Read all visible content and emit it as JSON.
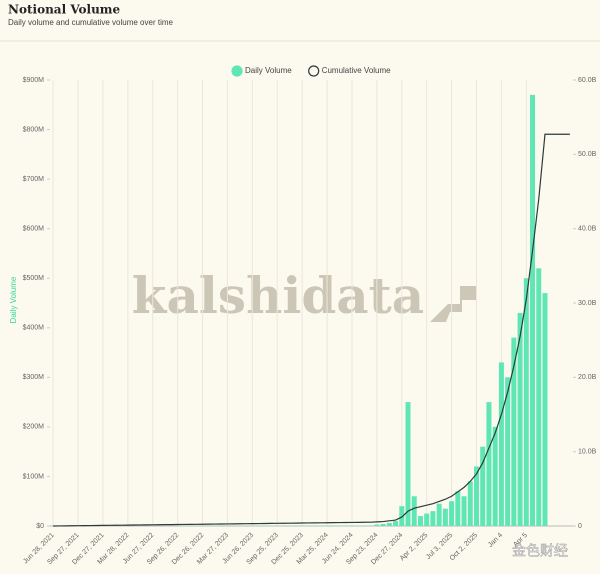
{
  "chart_data": {
    "type": "bar",
    "title": "Notional Volume",
    "subtitle": "Daily volume and cumulative volume over time",
    "y_label": "Daily Volume",
    "watermark": "kalshidata",
    "watermark2": "金色财经",
    "grid": "x",
    "categories": [
      "Jun 28, 2021",
      null,
      null,
      null,
      "Sep 27, 2021",
      null,
      null,
      null,
      "Dec 27, 2021",
      null,
      null,
      null,
      "Mar 28, 2022",
      null,
      null,
      null,
      "Jun 27, 2022",
      null,
      null,
      null,
      "Sep 26, 2022",
      null,
      null,
      null,
      "Dec 26, 2022",
      null,
      null,
      null,
      "Mar 27, 2023",
      null,
      null,
      null,
      "Jun 26, 2023",
      null,
      null,
      null,
      "Sep 25, 2023",
      null,
      null,
      null,
      "Dec 25, 2023",
      null,
      null,
      null,
      "Mar 25, 2024",
      null,
      null,
      null,
      "Jun 24, 2024",
      null,
      null,
      null,
      "Sep 23, 2024",
      null,
      null,
      null,
      "Dec 27, 2024",
      null,
      null,
      null,
      "Apr 2, 2025",
      null,
      null,
      null,
      "Jul 3, 2025",
      null,
      null,
      null,
      "Oct 2, 2025",
      null,
      null,
      null,
      "Jan 4",
      null,
      null,
      null,
      "Apr 5",
      null,
      null,
      null,
      null,
      null,
      null,
      null
    ],
    "series": [
      {
        "name": "Daily Volume",
        "type": "bar",
        "color": "#5ee6b5",
        "values": [
          0.2,
          0.2,
          0.2,
          0.2,
          0.2,
          0.2,
          0.2,
          0.2,
          0.2,
          0.2,
          0.2,
          0.2,
          0.2,
          0.2,
          0.2,
          0.2,
          0.2,
          0.2,
          0.2,
          0.2,
          0.5,
          0.5,
          0.5,
          0.5,
          0.5,
          0.5,
          0.5,
          0.5,
          0.5,
          0.5,
          0.5,
          0.5,
          0.5,
          0.5,
          0.5,
          0.5,
          0.5,
          0.5,
          0.5,
          0.5,
          1,
          1,
          1,
          1,
          1,
          1,
          1,
          1,
          1,
          1,
          1,
          1,
          3,
          4,
          6,
          10,
          40,
          250,
          60,
          20,
          25,
          30,
          45,
          35,
          50,
          70,
          60,
          90,
          120,
          160,
          250,
          200,
          330,
          300,
          380,
          430,
          500,
          870,
          520,
          470,
          null,
          null,
          null,
          null
        ]
      },
      {
        "name": "Cumulative Volume",
        "type": "line",
        "axis": "y2",
        "color": "#2d3a3a",
        "values": [
          0,
          0.01,
          0.02,
          0.03,
          0.04,
          0.05,
          0.06,
          0.07,
          0.08,
          0.09,
          0.1,
          0.11,
          0.12,
          0.13,
          0.14,
          0.15,
          0.16,
          0.17,
          0.18,
          0.19,
          0.2,
          0.21,
          0.22,
          0.23,
          0.24,
          0.25,
          0.26,
          0.27,
          0.28,
          0.29,
          0.3,
          0.31,
          0.32,
          0.33,
          0.34,
          0.35,
          0.36,
          0.37,
          0.38,
          0.39,
          0.4,
          0.41,
          0.42,
          0.43,
          0.44,
          0.45,
          0.46,
          0.47,
          0.48,
          0.49,
          0.5,
          0.51,
          0.55,
          0.6,
          0.7,
          0.8,
          1.2,
          2,
          2.4,
          2.6,
          2.8,
          3,
          3.3,
          3.6,
          4,
          4.6,
          5.2,
          6,
          7,
          8.5,
          10.5,
          12.5,
          15,
          18,
          21.5,
          25.5,
          30.5,
          37,
          44,
          52.7,
          52.7,
          52.7,
          52.7,
          52.7
        ]
      }
    ],
    "ylim": [
      0,
      900
    ],
    "yticks": [
      {
        "value": 0,
        "label": "$0"
      },
      {
        "value": 100,
        "label": "$100M"
      },
      {
        "value": 200,
        "label": "$200M"
      },
      {
        "value": 300,
        "label": "$300M"
      },
      {
        "value": 400,
        "label": "$400M"
      },
      {
        "value": 500,
        "label": "$500M"
      },
      {
        "value": 600,
        "label": "$600M"
      },
      {
        "value": 700,
        "label": "$700M"
      },
      {
        "value": 800,
        "label": "$800M"
      },
      {
        "value": 900,
        "label": "$900M"
      }
    ],
    "y2lim": [
      0,
      60
    ],
    "y2ticks": [
      0,
      {
        "value": 10,
        "label": "10.0B"
      },
      {
        "value": 20,
        "label": "20.0B"
      },
      {
        "value": 30,
        "label": "30.0B"
      },
      {
        "value": 40,
        "label": "40.0B"
      },
      {
        "value": 50,
        "label": "50.0B"
      },
      {
        "value": 60,
        "label": "60.0B"
      }
    ]
  }
}
